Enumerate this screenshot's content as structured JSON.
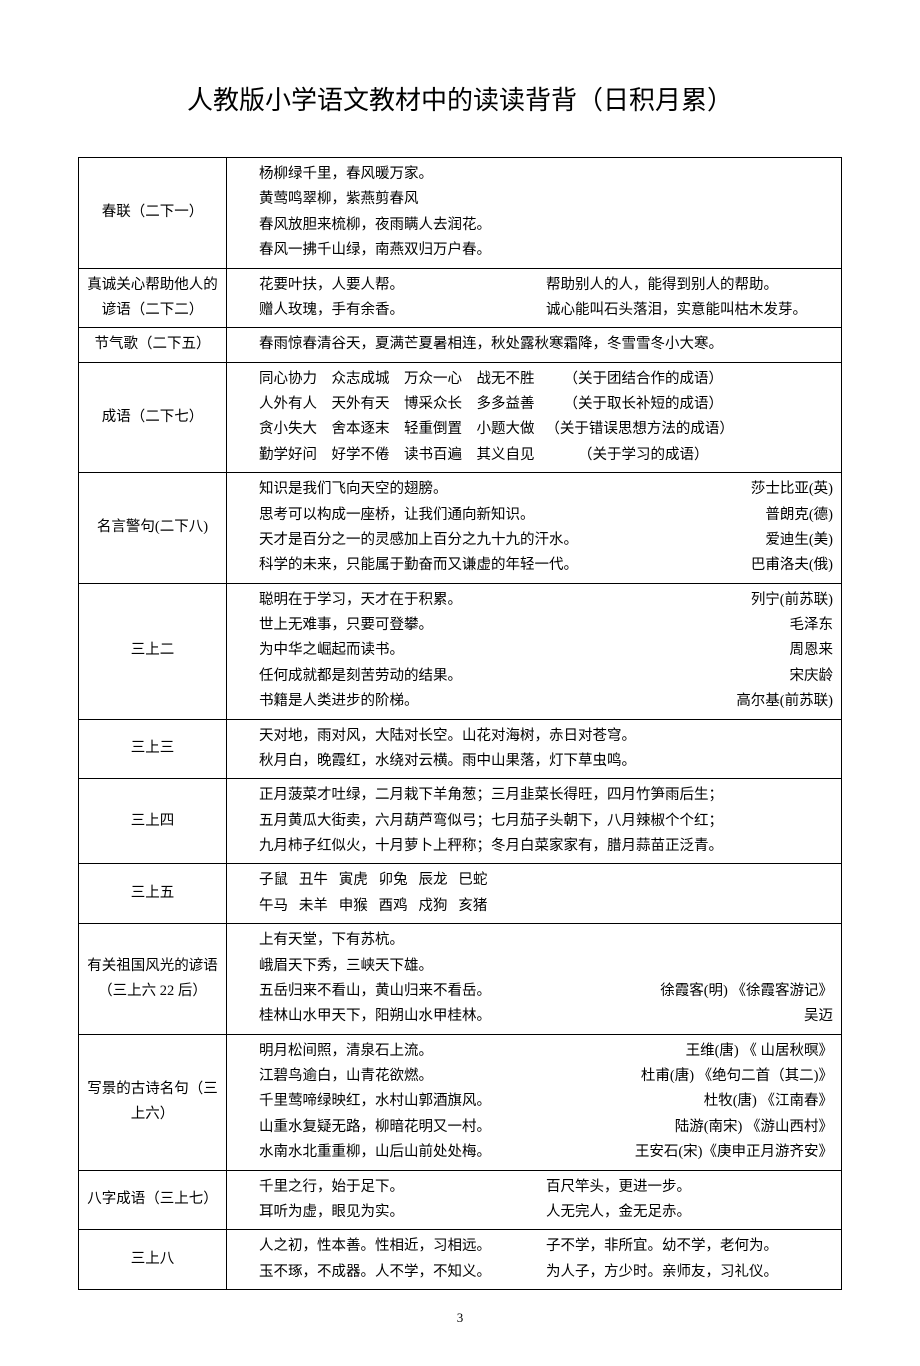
{
  "title": "人教版小学语文教材中的读读背背（日积月累）",
  "page_number": "3",
  "rows": [
    {
      "label": "春联（二下一）",
      "lines": [
        "杨柳绿千里，春风暖万家。",
        "黄莺鸣翠柳，紫燕剪春风",
        "春风放胆来梳柳，夜雨瞒人去润花。",
        "春风一拂千山绿，南燕双归万户春。"
      ]
    },
    {
      "label": "真诚关心帮助他人的谚语（二下二）",
      "two_col": [
        {
          "left": "花要叶扶，人要人帮。",
          "right": "帮助别人的人，能得到别人的帮助。"
        },
        {
          "left": "赠人玫瑰，手有余香。",
          "right": "诚心能叫石头落泪，实意能叫枯木发芽。"
        }
      ]
    },
    {
      "label": "节气歌（二下五）",
      "lines": [
        "春雨惊春清谷天，夏满芒夏暑相连，秋处露秋寒霜降，冬雪雪冬小大寒。"
      ]
    },
    {
      "label": "成语（二下七）",
      "lines": [
        "同心协力    众志成城    万众一心    战无不胜        （关于团结合作的成语）",
        "人外有人    天外有天    博采众长    多多益善        （关于取长补短的成语）",
        "贪小失大    舍本逐末    轻重倒置    小题大做   （关于错误思想方法的成语）",
        "勤学好问    好学不倦    读书百遍    其义自见            （关于学习的成语）"
      ]
    },
    {
      "label": "名言警句(二下八)",
      "flex_lines": [
        {
          "left": "知识是我们飞向天空的翅膀。",
          "right": "莎士比亚(英)"
        },
        {
          "left": "思考可以构成一座桥，让我们通向新知识。",
          "right": "普朗克(德)"
        },
        {
          "left": "天才是百分之一的灵感加上百分之九十九的汗水。",
          "right": "爱迪生(美)"
        },
        {
          "left": "科学的未来，只能属于勤奋而又谦虚的年轻一代。",
          "right": "巴甫洛夫(俄)"
        }
      ]
    },
    {
      "label": "三上二",
      "flex_lines": [
        {
          "left": "聪明在于学习，天才在于积累。",
          "right": "列宁(前苏联)　　　　　"
        },
        {
          "left": "世上无难事，只要可登攀。",
          "right": "毛泽东　　　　　　　"
        },
        {
          "left": "为中华之崛起而读书。",
          "right": "周恩来　　　"
        },
        {
          "left": "任何成就都是刻苦劳动的结果。",
          "right": "宋庆龄　　　"
        },
        {
          "left": "书籍是人类进步的阶梯。",
          "right": "高尔基(前苏联)　　"
        }
      ]
    },
    {
      "label": "三上三",
      "lines": [
        "天对地，雨对风，大陆对长空。山花对海树，赤日对苍穹。",
        "秋月白，晚霞红，水绕对云横。雨中山果落，灯下草虫鸣。"
      ]
    },
    {
      "label": "三上四",
      "lines": [
        "正月菠菜才吐绿，二月栽下羊角葱；三月韭菜长得旺，四月竹笋雨后生；",
        "五月黄瓜大街卖，六月葫芦弯似弓；七月茄子头朝下，八月辣椒个个红；",
        "九月柿子红似火，十月萝卜上秤称；冬月白菜家家有，腊月蒜苗正泛青。"
      ]
    },
    {
      "label": "三上五",
      "lines": [
        "子鼠   丑牛   寅虎   卯兔   辰龙   巳蛇",
        "午马   未羊   申猴   酉鸡   戍狗   亥猪"
      ]
    },
    {
      "label": "有关祖国风光的谚语（三上六 22 后）",
      "flex_lines": [
        {
          "left": "上有天堂，下有苏杭。",
          "right": ""
        },
        {
          "left": "峨眉天下秀，三峡天下雄。",
          "right": ""
        },
        {
          "left": "五岳归来不看山，黄山归来不看岳。",
          "right": "徐霞客(明)  《徐霞客游记》"
        },
        {
          "left": "桂林山水甲天下，阳朔山水甲桂林。",
          "right": "吴迈"
        }
      ]
    },
    {
      "label": "写景的古诗名句（三上六）",
      "flex_lines": [
        {
          "left": "明月松间照，清泉石上流。",
          "right": "王维(唐) 《 山居秋暝》"
        },
        {
          "left": "江碧鸟逾白，山青花欲燃。",
          "right": "杜甫(唐) 《绝句二首（其二)》"
        },
        {
          "left": "千里莺啼绿映红，水村山郭酒旗风。",
          "right": "杜牧(唐) 《江南春》"
        },
        {
          "left": "山重水复疑无路，柳暗花明又一村。",
          "right": "陆游(南宋)  《游山西村》"
        },
        {
          "left": "水南水北重重柳，山后山前处处梅。",
          "right": "王安石(宋)《庚申正月游齐安》"
        }
      ]
    },
    {
      "label": "八字成语（三上七）",
      "two_col": [
        {
          "left": "千里之行，始于足下。",
          "right": "百尺竿头，更进一步。"
        },
        {
          "left": "耳听为虚，眼见为实。",
          "right": "人无完人，金无足赤。"
        }
      ]
    },
    {
      "label": "三上八",
      "two_col": [
        {
          "left": "人之初，性本善。性相近，习相远。",
          "right": "子不学，非所宜。幼不学，老何为。"
        },
        {
          "left": "玉不琢，不成器。人不学，不知义。",
          "right": "为人子，方少时。亲师友，习礼仪。"
        }
      ]
    }
  ]
}
